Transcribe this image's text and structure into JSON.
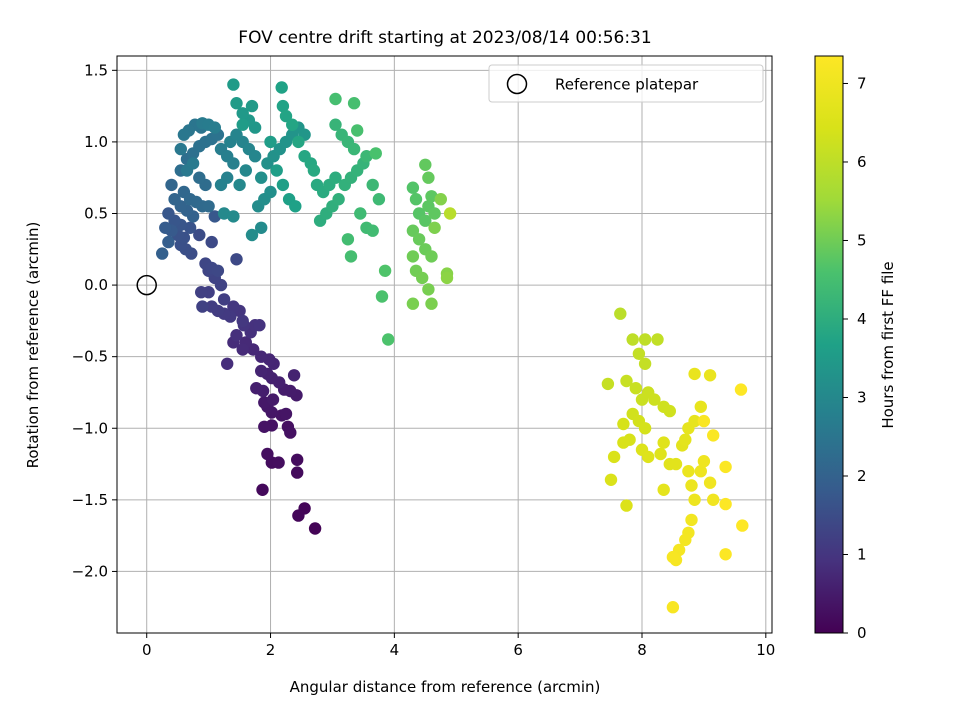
{
  "chart_data": {
    "type": "scatter",
    "title": "FOV centre drift starting at 2023/08/14 00:56:31",
    "xlabel": "Angular distance from reference (arcmin)",
    "ylabel": "Rotation from reference (arcmin)",
    "colorbar_label": "Hours from first FF file",
    "colormap": "viridis",
    "xlim": [
      -0.48,
      10.1
    ],
    "ylim": [
      -2.43,
      1.6
    ],
    "clim": [
      0,
      7.35
    ],
    "x_ticks": [
      0,
      2,
      4,
      6,
      8,
      10
    ],
    "x_tick_labels": [
      "0",
      "2",
      "4",
      "6",
      "8",
      "10"
    ],
    "y_ticks": [
      1.5,
      1.0,
      0.5,
      0.0,
      -0.5,
      -1.0,
      -1.5,
      -2.0
    ],
    "y_tick_labels": [
      "1.5",
      "1.0",
      "0.5",
      "0.0",
      "−0.5",
      "−1.0",
      "−1.5",
      "−2.0"
    ],
    "colorbar_ticks": [
      0,
      1,
      2,
      3,
      4,
      5,
      6,
      7
    ],
    "colorbar_tick_labels": [
      "0",
      "1",
      "2",
      "3",
      "4",
      "5",
      "6",
      "7"
    ],
    "grid": true,
    "legend": {
      "position": "top-right",
      "entries": [
        "Reference platepar"
      ]
    },
    "reference_point": {
      "x": 0.0,
      "y": 0.0,
      "label": "Reference platepar"
    },
    "points": [
      [
        2.72,
        -1.7,
        0.05
      ],
      [
        2.55,
        -1.56,
        0.08
      ],
      [
        2.45,
        -1.61,
        0.1
      ],
      [
        1.87,
        -1.43,
        0.15
      ],
      [
        2.43,
        -1.31,
        0.18
      ],
      [
        2.43,
        -1.22,
        0.2
      ],
      [
        2.02,
        -1.24,
        0.22
      ],
      [
        2.13,
        -1.24,
        0.24
      ],
      [
        1.95,
        -1.18,
        0.26
      ],
      [
        2.28,
        -0.99,
        0.28
      ],
      [
        2.32,
        -1.03,
        0.3
      ],
      [
        2.02,
        -0.98,
        0.32
      ],
      [
        1.9,
        -0.99,
        0.34
      ],
      [
        2.18,
        -0.91,
        0.36
      ],
      [
        2.25,
        -0.9,
        0.38
      ],
      [
        2.02,
        -0.89,
        0.4
      ],
      [
        1.95,
        -0.85,
        0.42
      ],
      [
        1.9,
        -0.82,
        0.44
      ],
      [
        2.04,
        -0.8,
        0.46
      ],
      [
        2.42,
        -0.77,
        0.48
      ],
      [
        2.32,
        -0.74,
        0.5
      ],
      [
        2.22,
        -0.73,
        0.52
      ],
      [
        1.88,
        -0.74,
        0.54
      ],
      [
        1.77,
        -0.72,
        0.56
      ],
      [
        2.14,
        -0.68,
        0.58
      ],
      [
        2.02,
        -0.65,
        0.6
      ],
      [
        1.95,
        -0.62,
        0.62
      ],
      [
        2.38,
        -0.63,
        0.64
      ],
      [
        1.85,
        -0.6,
        0.66
      ],
      [
        2.05,
        -0.55,
        0.68
      ],
      [
        1.98,
        -0.52,
        0.7
      ],
      [
        1.85,
        -0.5,
        0.72
      ],
      [
        1.72,
        -0.45,
        0.74
      ],
      [
        1.6,
        -0.4,
        0.76
      ],
      [
        1.55,
        -0.45,
        0.78
      ],
      [
        1.4,
        -0.4,
        0.8
      ],
      [
        1.3,
        -0.55,
        0.85
      ],
      [
        1.45,
        -0.35,
        0.88
      ],
      [
        1.68,
        -0.33,
        0.9
      ],
      [
        1.75,
        -0.28,
        0.92
      ],
      [
        1.82,
        -0.28,
        0.95
      ],
      [
        1.57,
        -0.28,
        0.98
      ],
      [
        1.5,
        -0.18,
        1.0
      ],
      [
        1.4,
        -0.15,
        1.03
      ],
      [
        1.55,
        -0.25,
        1.05
      ],
      [
        1.35,
        -0.22,
        1.08
      ],
      [
        1.25,
        -0.2,
        1.1
      ],
      [
        1.15,
        -0.18,
        1.13
      ],
      [
        1.05,
        -0.15,
        1.15
      ],
      [
        1.25,
        -0.1,
        1.18
      ],
      [
        1.0,
        -0.05,
        1.2
      ],
      [
        0.88,
        -0.05,
        1.22
      ],
      [
        0.9,
        -0.15,
        1.25
      ],
      [
        1.2,
        0.0,
        1.28
      ],
      [
        1.1,
        0.05,
        1.3
      ],
      [
        1.0,
        0.1,
        1.33
      ],
      [
        0.95,
        0.15,
        1.35
      ],
      [
        1.05,
        0.12,
        1.38
      ],
      [
        1.15,
        0.1,
        1.4
      ],
      [
        1.45,
        0.18,
        1.42
      ],
      [
        1.05,
        0.3,
        1.45
      ],
      [
        0.85,
        0.35,
        1.48
      ],
      [
        0.72,
        0.22,
        1.5
      ],
      [
        0.63,
        0.25,
        1.55
      ],
      [
        0.55,
        0.28,
        1.58
      ],
      [
        0.6,
        0.33,
        1.6
      ],
      [
        0.5,
        0.35,
        1.62
      ],
      [
        0.7,
        0.4,
        1.65
      ],
      [
        0.55,
        0.42,
        1.68
      ],
      [
        0.45,
        0.45,
        1.7
      ],
      [
        0.35,
        0.5,
        1.72
      ],
      [
        1.1,
        0.48,
        1.75
      ],
      [
        0.4,
        0.38,
        1.8
      ],
      [
        0.3,
        0.4,
        1.85
      ],
      [
        0.35,
        0.3,
        1.9
      ],
      [
        0.25,
        0.22,
        1.95
      ],
      [
        0.75,
        0.48,
        2.0
      ],
      [
        0.65,
        0.52,
        2.02
      ],
      [
        0.55,
        0.55,
        2.05
      ],
      [
        0.45,
        0.6,
        2.08
      ],
      [
        0.4,
        0.7,
        2.1
      ],
      [
        0.6,
        0.65,
        2.12
      ],
      [
        0.7,
        0.6,
        2.15
      ],
      [
        0.8,
        0.58,
        2.18
      ],
      [
        0.9,
        0.55,
        2.2
      ],
      [
        1.0,
        0.55,
        2.22
      ],
      [
        0.95,
        0.7,
        2.25
      ],
      [
        0.85,
        0.75,
        2.28
      ],
      [
        0.55,
        0.8,
        2.3
      ],
      [
        0.65,
        0.88,
        2.32
      ],
      [
        0.75,
        0.92,
        2.35
      ],
      [
        0.85,
        0.97,
        2.38
      ],
      [
        0.95,
        1.0,
        2.4
      ],
      [
        1.05,
        1.02,
        2.42
      ],
      [
        1.15,
        1.05,
        2.45
      ],
      [
        0.88,
        1.1,
        2.48
      ],
      [
        0.78,
        1.12,
        2.5
      ],
      [
        0.68,
        1.08,
        2.52
      ],
      [
        0.6,
        1.05,
        2.55
      ],
      [
        0.55,
        0.95,
        2.58
      ],
      [
        0.65,
        0.8,
        2.6
      ],
      [
        0.75,
        0.85,
        2.62
      ],
      [
        0.9,
        1.13,
        2.65
      ],
      [
        1.0,
        1.12,
        2.68
      ],
      [
        1.1,
        1.1,
        2.7
      ],
      [
        1.2,
        0.95,
        2.72
      ],
      [
        1.3,
        0.9,
        2.75
      ],
      [
        1.4,
        0.85,
        2.78
      ],
      [
        1.3,
        0.75,
        2.8
      ],
      [
        1.2,
        0.7,
        2.82
      ],
      [
        1.35,
        1.0,
        2.85
      ],
      [
        1.45,
        1.05,
        2.88
      ],
      [
        1.55,
        1.0,
        2.9
      ],
      [
        1.65,
        0.95,
        2.92
      ],
      [
        1.75,
        0.9,
        2.95
      ],
      [
        1.6,
        0.8,
        2.98
      ],
      [
        1.5,
        0.7,
        3.0
      ],
      [
        1.25,
        0.5,
        3.02
      ],
      [
        1.4,
        0.48,
        3.05
      ],
      [
        1.85,
        0.4,
        3.08
      ],
      [
        1.7,
        0.35,
        3.1
      ],
      [
        1.8,
        0.55,
        3.12
      ],
      [
        1.9,
        0.6,
        3.15
      ],
      [
        2.0,
        0.65,
        3.18
      ],
      [
        1.85,
        0.75,
        3.2
      ],
      [
        1.95,
        0.85,
        3.22
      ],
      [
        2.05,
        0.9,
        3.25
      ],
      [
        2.15,
        0.95,
        3.28
      ],
      [
        2.25,
        1.0,
        3.3
      ],
      [
        2.35,
        1.05,
        3.32
      ],
      [
        2.45,
        1.1,
        3.35
      ],
      [
        2.55,
        1.05,
        3.38
      ],
      [
        1.75,
        1.1,
        3.4
      ],
      [
        1.65,
        1.15,
        3.42
      ],
      [
        1.55,
        1.2,
        3.45
      ],
      [
        1.7,
        1.25,
        3.48
      ],
      [
        1.45,
        1.27,
        3.5
      ],
      [
        1.4,
        1.4,
        3.52
      ],
      [
        1.55,
        1.12,
        3.55
      ],
      [
        2.0,
        1.0,
        3.58
      ],
      [
        2.1,
        0.8,
        3.6
      ],
      [
        2.2,
        0.7,
        3.62
      ],
      [
        2.3,
        0.6,
        3.65
      ],
      [
        2.4,
        0.55,
        3.68
      ],
      [
        2.18,
        1.38,
        3.7
      ],
      [
        2.2,
        1.25,
        3.72
      ],
      [
        2.25,
        1.18,
        3.75
      ],
      [
        2.35,
        1.12,
        3.78
      ],
      [
        2.45,
        1.0,
        3.8
      ],
      [
        2.55,
        0.9,
        3.82
      ],
      [
        2.65,
        0.85,
        3.85
      ],
      [
        2.7,
        0.8,
        3.88
      ],
      [
        2.75,
        0.7,
        3.9
      ],
      [
        2.85,
        0.65,
        3.92
      ],
      [
        2.95,
        0.7,
        3.95
      ],
      [
        3.05,
        0.75,
        3.98
      ],
      [
        2.8,
        0.45,
        4.0
      ],
      [
        2.9,
        0.5,
        4.02
      ],
      [
        3.0,
        0.55,
        4.05
      ],
      [
        3.1,
        0.6,
        4.08
      ],
      [
        3.2,
        0.7,
        4.1
      ],
      [
        3.3,
        0.75,
        4.12
      ],
      [
        3.4,
        0.8,
        4.15
      ],
      [
        3.5,
        0.85,
        4.18
      ],
      [
        3.05,
        1.12,
        4.2
      ],
      [
        3.15,
        1.05,
        4.22
      ],
      [
        3.25,
        1.0,
        4.25
      ],
      [
        3.35,
        0.95,
        4.28
      ],
      [
        3.55,
        0.9,
        4.3
      ],
      [
        3.65,
        0.7,
        4.32
      ],
      [
        3.75,
        0.6,
        4.35
      ],
      [
        3.45,
        0.5,
        4.38
      ],
      [
        3.55,
        0.4,
        4.4
      ],
      [
        3.65,
        0.38,
        4.42
      ],
      [
        3.25,
        0.32,
        4.45
      ],
      [
        3.3,
        0.2,
        4.48
      ],
      [
        3.05,
        1.3,
        4.5
      ],
      [
        3.35,
        1.27,
        4.52
      ],
      [
        3.4,
        1.08,
        4.55
      ],
      [
        3.7,
        0.92,
        4.58
      ],
      [
        3.8,
        -0.08,
        4.6
      ],
      [
        3.9,
        -0.38,
        4.62
      ],
      [
        3.85,
        0.1,
        4.65
      ],
      [
        4.3,
        0.68,
        4.68
      ],
      [
        4.35,
        0.6,
        4.7
      ],
      [
        4.4,
        0.5,
        4.72
      ],
      [
        4.5,
        0.45,
        4.75
      ],
      [
        4.55,
        0.55,
        4.78
      ],
      [
        4.6,
        0.62,
        4.8
      ],
      [
        4.65,
        0.5,
        4.82
      ],
      [
        4.5,
        0.84,
        4.85
      ],
      [
        4.55,
        0.75,
        4.88
      ],
      [
        4.3,
        0.38,
        4.9
      ],
      [
        4.4,
        0.32,
        4.92
      ],
      [
        4.5,
        0.25,
        4.95
      ],
      [
        4.6,
        0.2,
        4.98
      ],
      [
        4.3,
        0.2,
        5.0
      ],
      [
        4.35,
        0.1,
        5.02
      ],
      [
        4.45,
        0.05,
        5.05
      ],
      [
        4.55,
        -0.03,
        5.08
      ],
      [
        4.3,
        -0.13,
        5.1
      ],
      [
        4.6,
        -0.13,
        5.12
      ],
      [
        4.65,
        0.4,
        5.15
      ],
      [
        4.75,
        0.6,
        5.2
      ],
      [
        4.85,
        0.08,
        5.25
      ],
      [
        4.85,
        0.05,
        5.3
      ],
      [
        4.9,
        0.5,
        5.9
      ],
      [
        7.65,
        -0.2,
        5.95
      ],
      [
        7.85,
        -0.38,
        6.0
      ],
      [
        8.05,
        -0.38,
        6.02
      ],
      [
        8.25,
        -0.38,
        6.05
      ],
      [
        7.95,
        -0.48,
        6.08
      ],
      [
        8.05,
        -0.55,
        6.1
      ],
      [
        7.45,
        -0.69,
        6.12
      ],
      [
        7.75,
        -0.67,
        6.15
      ],
      [
        7.9,
        -0.72,
        6.18
      ],
      [
        8.0,
        -0.8,
        6.2
      ],
      [
        8.1,
        -0.75,
        6.22
      ],
      [
        8.2,
        -0.8,
        6.25
      ],
      [
        8.35,
        -0.85,
        6.28
      ],
      [
        8.45,
        -0.88,
        6.3
      ],
      [
        7.85,
        -0.9,
        6.32
      ],
      [
        7.95,
        -0.95,
        6.35
      ],
      [
        8.05,
        -1.0,
        6.38
      ],
      [
        7.7,
        -0.97,
        6.4
      ],
      [
        7.8,
        -1.08,
        6.42
      ],
      [
        7.7,
        -1.1,
        6.45
      ],
      [
        7.55,
        -1.2,
        6.48
      ],
      [
        7.5,
        -1.36,
        6.5
      ],
      [
        7.75,
        -1.54,
        6.52
      ],
      [
        8.0,
        -1.15,
        6.55
      ],
      [
        8.1,
        -1.2,
        6.58
      ],
      [
        8.3,
        -1.18,
        6.6
      ],
      [
        8.35,
        -1.1,
        6.62
      ],
      [
        8.45,
        -1.25,
        6.65
      ],
      [
        8.55,
        -1.25,
        6.68
      ],
      [
        8.65,
        -1.12,
        6.7
      ],
      [
        8.7,
        -1.08,
        6.72
      ],
      [
        8.35,
        -1.43,
        6.75
      ],
      [
        8.75,
        -1.0,
        6.78
      ],
      [
        8.85,
        -0.95,
        6.8
      ],
      [
        8.95,
        -0.85,
        6.82
      ],
      [
        8.85,
        -0.62,
        6.85
      ],
      [
        9.1,
        -0.63,
        6.88
      ],
      [
        8.75,
        -1.3,
        6.9
      ],
      [
        8.8,
        -1.4,
        6.92
      ],
      [
        8.85,
        -1.5,
        6.95
      ],
      [
        8.95,
        -1.3,
        6.98
      ],
      [
        9.0,
        -1.23,
        7.0
      ],
      [
        9.1,
        -1.38,
        7.02
      ],
      [
        9.15,
        -1.5,
        7.05
      ],
      [
        8.8,
        -1.64,
        7.08
      ],
      [
        8.75,
        -1.73,
        7.1
      ],
      [
        8.7,
        -1.78,
        7.12
      ],
      [
        8.6,
        -1.85,
        7.15
      ],
      [
        8.55,
        -1.92,
        7.18
      ],
      [
        8.5,
        -1.9,
        7.2
      ],
      [
        8.5,
        -2.25,
        7.22
      ],
      [
        9.0,
        -0.95,
        7.25
      ],
      [
        9.15,
        -1.05,
        7.28
      ],
      [
        9.35,
        -1.27,
        7.3
      ],
      [
        9.35,
        -1.53,
        7.32
      ],
      [
        9.35,
        -1.88,
        7.33
      ],
      [
        9.6,
        -0.73,
        7.34
      ],
      [
        9.62,
        -1.68,
        7.35
      ]
    ]
  }
}
